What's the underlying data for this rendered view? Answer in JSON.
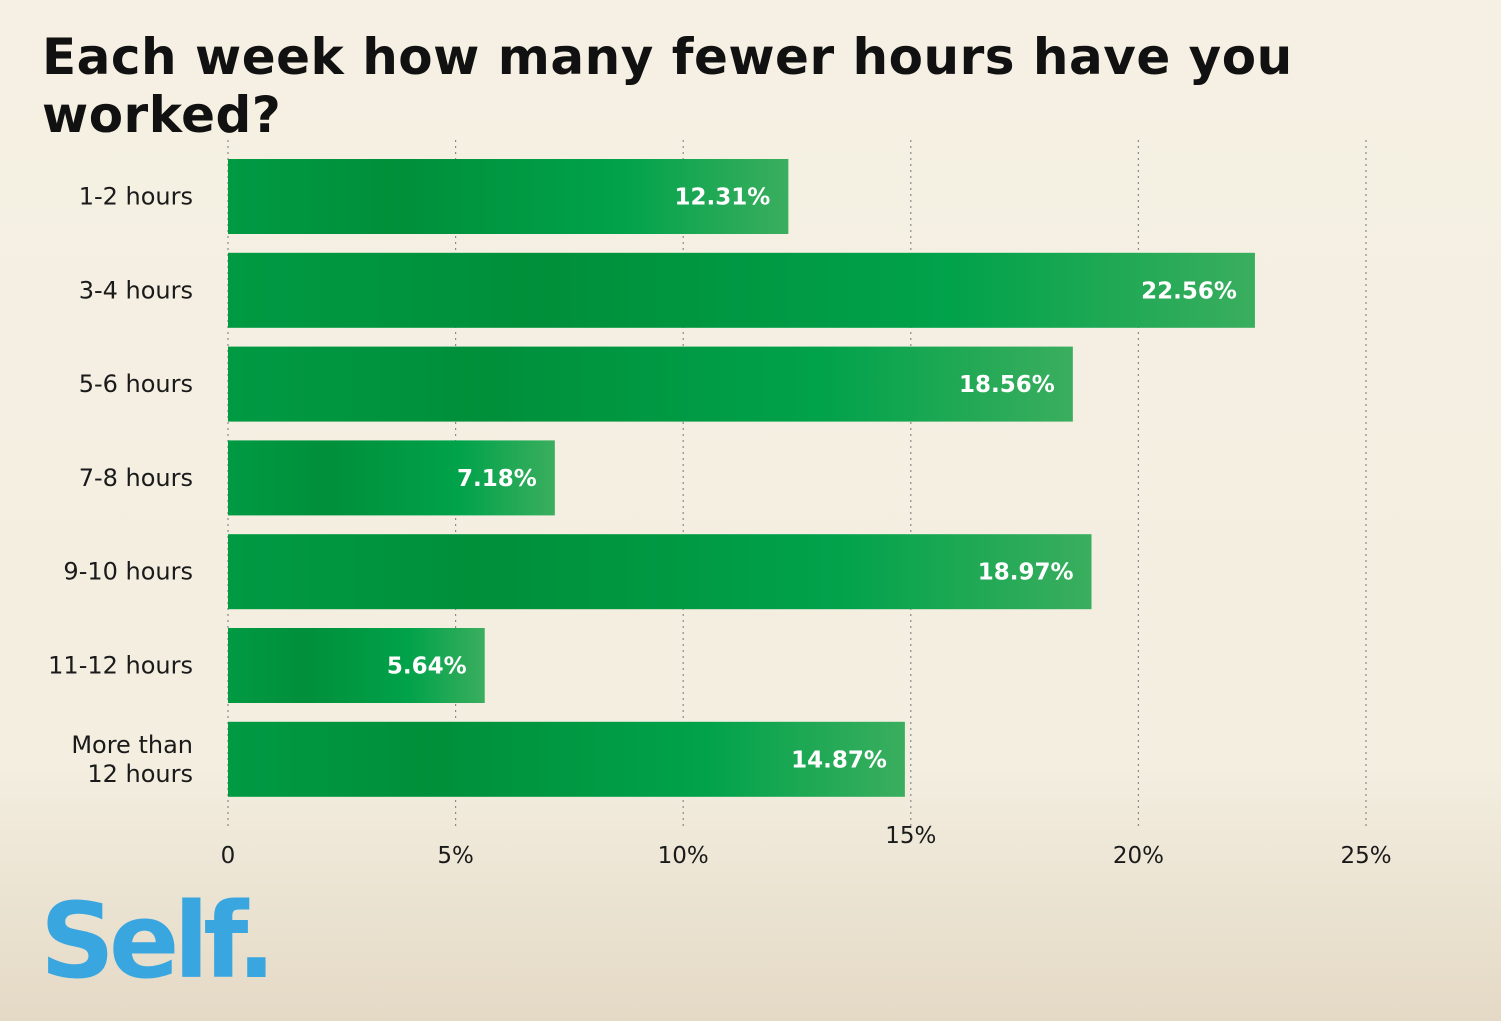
{
  "chart_data": {
    "type": "bar",
    "orientation": "horizontal",
    "title": "Each week how many fewer hours have you worked?",
    "categories": [
      [
        "1-2 hours"
      ],
      [
        "3-4 hours"
      ],
      [
        "5-6 hours"
      ],
      [
        "7-8 hours"
      ],
      [
        "9-10 hours"
      ],
      [
        "11-12 hours"
      ],
      [
        "More than",
        "12 hours"
      ]
    ],
    "values": [
      12.31,
      22.56,
      18.56,
      7.18,
      18.97,
      5.64,
      14.87
    ],
    "value_labels": [
      "12.31%",
      "22.56%",
      "18.56%",
      "7.18%",
      "18.97%",
      "5.64%",
      "14.87%"
    ],
    "xlim": [
      0,
      25
    ],
    "ticks": [
      0,
      5,
      10,
      15,
      20,
      25
    ],
    "tick_labels": [
      "0",
      "5%",
      "10%",
      "15%",
      "20%",
      "25%"
    ],
    "grid": "vertical-dotted",
    "bar_color": "#00963f",
    "bar_highlight": "#3aae5e"
  },
  "brand": {
    "name": "Self",
    "dot": ".",
    "color": "#3aa6e0"
  }
}
